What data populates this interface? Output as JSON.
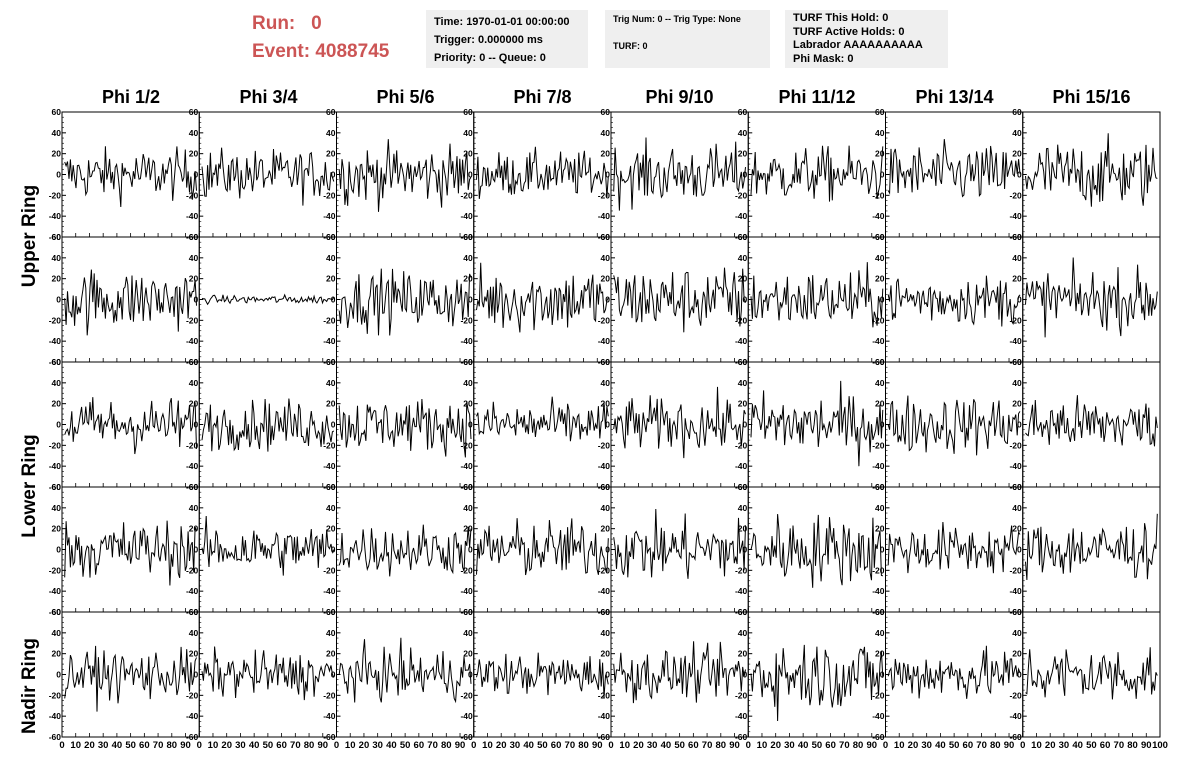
{
  "header": {
    "run_label": "Run:",
    "run_value": "0",
    "event_label": "Event:",
    "event_value": "4088745",
    "time": "Time: 1970-01-01 00:00:00",
    "trigger": "Trigger: 0.000000 ms",
    "priority": "Priority: 0 -- Queue: 0",
    "trig_num": "Trig Num: 0 -- Trig Type: None",
    "turf": "TURF: 0",
    "turf_hold": "TURF This Hold: 0",
    "turf_active": "TURF Active Holds: 0",
    "labrador": "Labrador AAAAAAAAAA",
    "phi_mask": "Phi Mask: 0"
  },
  "columns": [
    "Phi 1/2",
    "Phi 3/4",
    "Phi 5/6",
    "Phi 7/8",
    "Phi 9/10",
    "Phi 11/12",
    "Phi 13/14",
    "Phi 15/16"
  ],
  "rings": [
    "Upper Ring",
    "Lower Ring",
    "Nadir Ring"
  ],
  "chart_data": {
    "type": "line",
    "description_rows": 5,
    "xlim": [
      0,
      100
    ],
    "ylim": [
      -60,
      60
    ],
    "y_ticks": [
      "60",
      "40",
      "20",
      "0",
      "-20",
      "-40",
      "-60"
    ],
    "x_ticks": [
      "0",
      "10",
      "20",
      "30",
      "40",
      "50",
      "60",
      "70",
      "80",
      "90",
      "100"
    ],
    "samples_per_trace": 95,
    "amplitudes": [
      [
        12,
        12,
        14,
        11,
        14,
        13,
        14,
        16
      ],
      [
        15,
        2,
        14,
        16,
        16,
        14,
        12,
        14
      ],
      [
        13,
        12,
        13,
        11,
        13,
        15,
        14,
        13
      ],
      [
        14,
        12,
        12,
        14,
        15,
        17,
        12,
        14
      ],
      [
        12,
        11,
        12,
        10,
        12,
        17,
        12,
        14
      ]
    ],
    "line_color": "#000000"
  }
}
